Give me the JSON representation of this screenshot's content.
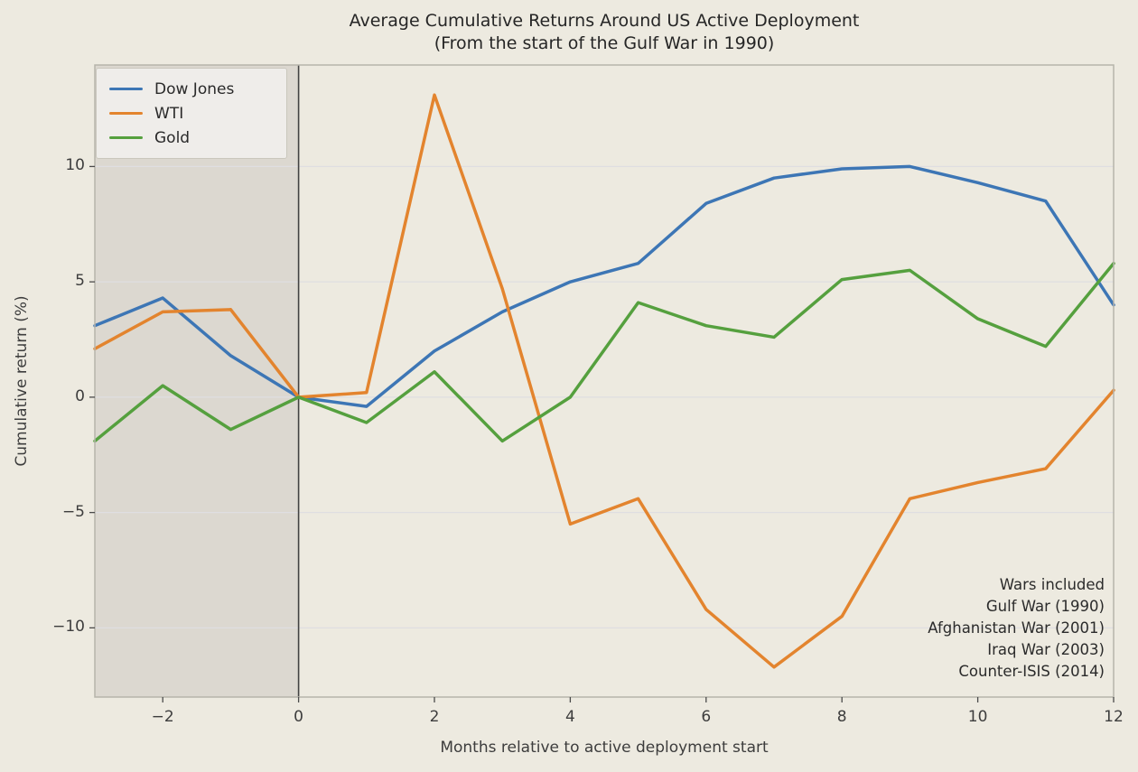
{
  "title_line1": "Average Cumulative Returns Around US Active Deployment",
  "title_line2": "(From the start of the Gulf War in 1990)",
  "chart_data": {
    "type": "line",
    "x": [
      -3,
      -2,
      -1,
      0,
      1,
      2,
      3,
      4,
      5,
      6,
      7,
      8,
      9,
      10,
      11,
      12
    ],
    "series": [
      {
        "name": "Dow Jones",
        "color": "#3d76b5",
        "values": [
          3.1,
          4.3,
          1.8,
          0.0,
          -0.4,
          2.0,
          3.7,
          5.0,
          5.8,
          8.4,
          9.5,
          9.9,
          10.0,
          9.3,
          8.5,
          4.0
        ]
      },
      {
        "name": "WTI",
        "color": "#e3842e",
        "values": [
          2.1,
          3.7,
          3.8,
          0.0,
          0.2,
          13.1,
          4.7,
          -5.5,
          -4.4,
          -9.2,
          -11.7,
          -9.5,
          -4.4,
          -3.7,
          -3.1,
          0.3
        ]
      },
      {
        "name": "Gold",
        "color": "#55a03e",
        "values": [
          -1.9,
          0.5,
          -1.4,
          0.0,
          -1.1,
          1.1,
          -1.9,
          0.0,
          4.1,
          3.1,
          2.6,
          5.1,
          5.5,
          3.4,
          2.2,
          5.8
        ]
      }
    ],
    "title": "Average Cumulative Returns Around US Active Deployment (From the start of the Gulf War in 1990)",
    "xlabel": "Months relative to active deployment start",
    "ylabel": "Cumulative return (%)",
    "xlim": [
      -3,
      12
    ],
    "ylim": [
      -13.0,
      14.4
    ],
    "x_ticks": [
      -2,
      0,
      2,
      4,
      6,
      8,
      10,
      12
    ],
    "y_ticks": [
      10,
      5,
      0,
      -5,
      -10
    ],
    "grid": "horizontal",
    "legend_position": "upper-left",
    "shaded_span": {
      "from": -3,
      "to": 0
    },
    "vline_x": 0
  },
  "annotation": {
    "lines": [
      "Wars included",
      "Gulf War (1990)",
      "Afghanistan War (2001)",
      "Iraq War (2003)",
      "Counter-ISIS (2014)"
    ]
  },
  "colors": {
    "background": "#edeae0",
    "shaded_span": "rgba(105,103,98,0.13)",
    "gridline": "#dfdee1",
    "vline": "#424242",
    "spine": "#b6b4ab",
    "tick": "#4a4a4a"
  }
}
